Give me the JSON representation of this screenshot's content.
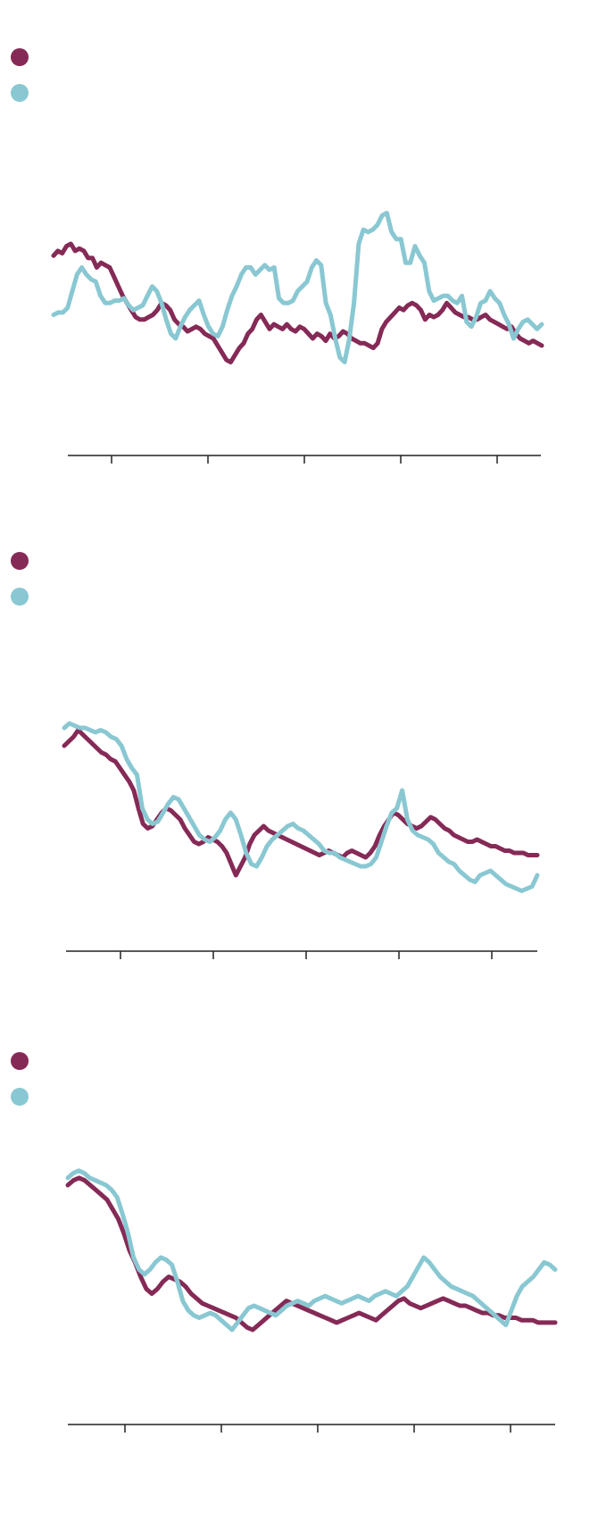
{
  "colors": {
    "series_a": "#852a56",
    "series_b": "#89c8d2",
    "axis": "#222222"
  },
  "chart_data": [
    {
      "type": "line",
      "title": "",
      "xlabel": "",
      "ylabel": "",
      "x_ticks": 5,
      "ylim": [
        0,
        100
      ],
      "legend": "top-left",
      "series": [
        {
          "values": [
            75,
            77,
            76,
            79,
            80,
            77,
            78,
            77,
            74,
            74,
            70,
            72,
            71,
            70,
            66,
            62,
            58,
            55,
            52,
            49,
            48,
            48,
            49,
            50,
            52,
            55,
            54,
            52,
            48,
            46,
            45,
            43,
            44,
            45,
            44,
            42,
            41,
            40,
            37,
            34,
            31,
            30,
            33,
            36,
            38,
            42,
            44,
            48,
            50,
            47,
            44,
            46,
            45,
            44,
            46,
            44,
            43,
            45,
            44,
            42,
            40,
            42,
            41,
            39,
            42,
            40,
            41,
            43,
            42,
            40,
            39,
            38,
            38,
            37,
            36,
            38,
            44,
            47,
            49,
            51,
            53,
            52,
            54,
            55,
            54,
            52,
            48,
            50,
            49,
            50,
            52,
            55,
            53,
            51,
            50,
            49,
            49,
            48,
            48,
            49,
            50,
            48,
            47,
            46,
            45,
            44,
            45,
            42,
            40,
            39,
            38,
            39,
            38,
            37
          ]
        },
        {
          "values": [
            50,
            51,
            51,
            53,
            60,
            67,
            70,
            67,
            65,
            64,
            58,
            55,
            55,
            56,
            56,
            57,
            54,
            52,
            53,
            54,
            58,
            62,
            60,
            55,
            48,
            42,
            40,
            45,
            49,
            52,
            54,
            56,
            50,
            45,
            42,
            41,
            45,
            52,
            58,
            62,
            67,
            70,
            70,
            67,
            69,
            71,
            69,
            70,
            57,
            55,
            55,
            56,
            60,
            62,
            64,
            70,
            73,
            71,
            55,
            50,
            40,
            32,
            30,
            40,
            55,
            80,
            86,
            85,
            86,
            88,
            92,
            93,
            85,
            82,
            82,
            72,
            72,
            79,
            75,
            72,
            60,
            56,
            57,
            58,
            58,
            56,
            55,
            58,
            47,
            45,
            49,
            55,
            56,
            60,
            57,
            55,
            50,
            46,
            40,
            44,
            47,
            48,
            46,
            44,
            46
          ]
        }
      ]
    },
    {
      "type": "line",
      "title": "",
      "xlabel": "",
      "ylabel": "",
      "x_ticks": 5,
      "ylim": [
        0,
        100
      ],
      "legend": "top-left",
      "series": [
        {
          "values": [
            78,
            80,
            82,
            85,
            83,
            81,
            79,
            77,
            75,
            74,
            72,
            71,
            68,
            65,
            62,
            58,
            50,
            43,
            41,
            42,
            45,
            48,
            50,
            49,
            47,
            45,
            41,
            38,
            35,
            34,
            35,
            37,
            36,
            35,
            33,
            30,
            25,
            20,
            24,
            28,
            34,
            38,
            40,
            42,
            40,
            39,
            38,
            37,
            36,
            35,
            34,
            33,
            32,
            31,
            30,
            29,
            30,
            31,
            30,
            29,
            28,
            30,
            31,
            30,
            29,
            28,
            30,
            33,
            38,
            42,
            45,
            48,
            47,
            45,
            43,
            42,
            41,
            42,
            44,
            46,
            45,
            43,
            41,
            40,
            38,
            37,
            36,
            35,
            35,
            36,
            35,
            34,
            33,
            33,
            32,
            31,
            31,
            30,
            30,
            30,
            29,
            29,
            29
          ]
        },
        {
          "values": [
            86,
            88,
            87,
            86,
            86,
            85,
            84,
            85,
            84,
            82,
            81,
            78,
            72,
            68,
            65,
            50,
            45,
            43,
            44,
            48,
            52,
            55,
            54,
            50,
            46,
            42,
            38,
            36,
            35,
            37,
            40,
            45,
            48,
            45,
            38,
            30,
            25,
            24,
            28,
            33,
            36,
            38,
            40,
            42,
            43,
            41,
            40,
            38,
            36,
            34,
            31,
            30,
            30,
            28,
            27,
            26,
            25,
            24,
            24,
            25,
            28,
            35,
            42,
            48,
            50,
            58,
            45,
            40,
            38,
            37,
            36,
            34,
            30,
            28,
            26,
            25,
            22,
            20,
            18,
            17,
            20,
            21,
            22,
            20,
            18,
            16,
            15,
            14,
            13,
            14,
            15,
            20
          ]
        }
      ]
    },
    {
      "type": "line",
      "title": "",
      "xlabel": "",
      "ylabel": "",
      "x_ticks": 5,
      "ylim": [
        0,
        100
      ],
      "legend": "top-left",
      "series": [
        {
          "values": [
            90,
            92,
            93,
            92,
            90,
            88,
            86,
            84,
            80,
            76,
            70,
            63,
            58,
            52,
            47,
            45,
            47,
            50,
            52,
            51,
            50,
            48,
            45,
            43,
            41,
            40,
            39,
            38,
            37,
            36,
            35,
            33,
            31,
            30,
            32,
            34,
            36,
            38,
            40,
            42,
            41,
            40,
            39,
            38,
            37,
            36,
            35,
            34,
            33,
            34,
            35,
            36,
            37,
            36,
            35,
            34,
            36,
            38,
            40,
            42,
            43,
            41,
            40,
            39,
            40,
            41,
            42,
            43,
            42,
            41,
            40,
            40,
            39,
            38,
            37,
            37,
            36,
            36,
            35,
            35,
            35,
            34,
            34,
            34,
            33,
            33,
            33,
            33
          ]
        },
        {
          "values": [
            93,
            95,
            96,
            95,
            93,
            92,
            91,
            90,
            88,
            85,
            78,
            70,
            60,
            55,
            53,
            55,
            58,
            60,
            59,
            57,
            50,
            42,
            38,
            36,
            35,
            36,
            37,
            36,
            34,
            32,
            30,
            33,
            36,
            39,
            40,
            39,
            38,
            37,
            36,
            38,
            40,
            41,
            42,
            41,
            40,
            42,
            43,
            44,
            43,
            42,
            41,
            42,
            43,
            44,
            43,
            42,
            44,
            45,
            46,
            45,
            44,
            46,
            48,
            52,
            56,
            60,
            58,
            55,
            52,
            50,
            48,
            47,
            46,
            45,
            44,
            42,
            40,
            38,
            36,
            34,
            32,
            38,
            44,
            48,
            50,
            52,
            55,
            58,
            57,
            55
          ]
        }
      ]
    }
  ]
}
